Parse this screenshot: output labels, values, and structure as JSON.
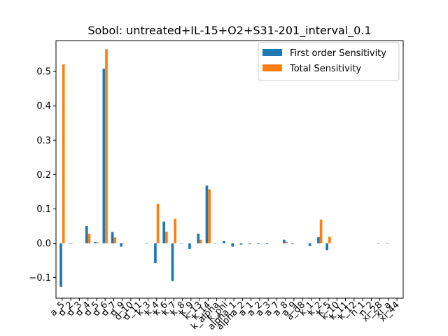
{
  "chart_data": {
    "type": "bar",
    "title": "Sobol: untreated+IL-15+O2+S31-201_interval_0.1",
    "xlabel": "",
    "ylabel": "",
    "ylim": [
      -0.16,
      0.59
    ],
    "yticks": [
      -0.1,
      0.0,
      0.1,
      0.2,
      0.3,
      0.4,
      0.5
    ],
    "ytick_labels": [
      "−0.1",
      "0.0",
      "0.1",
      "0.2",
      "0.3",
      "0.4",
      "0.5"
    ],
    "legend_position": "top-right",
    "grid": false,
    "categories": [
      "a_5",
      "d_2",
      "d_3",
      "d_4",
      "d_5",
      "d_6",
      "d_7",
      "d_9",
      "d_10",
      "d_11",
      "k_3",
      "k_4",
      "k_6",
      "k_7",
      "k_8",
      "k_9",
      "k_13",
      "k_14",
      "k_alpha",
      "k_phi",
      "alpha_1",
      "alpha_2",
      "a_1",
      "a_2",
      "a_3",
      "a_7",
      "a_8",
      "a_9",
      "a_d8",
      "k_1",
      "k_2",
      "k_5",
      "k_10",
      "k_11",
      "k_12",
      "n_1",
      "n_2",
      "xi_28",
      "xi_a",
      "xi_44"
    ],
    "xtick_labels": [
      "a_5",
      "d_2",
      "d_3",
      "d_4",
      "d_5",
      "d_6",
      "d_7",
      "d_9",
      "d_10",
      "d_11",
      "k_3",
      "k_4",
      "k_6",
      "k_7",
      "k_8",
      "k_9",
      "k_13",
      "k_14",
      "k_alpha",
      "k_phi",
      "alpha_1",
      "alpha_2",
      "a_1",
      "a_2",
      "a_3",
      "a_7",
      "a_8",
      "a_9",
      "a_d8",
      "k_1",
      "k_2",
      "k_5",
      "k_10",
      "k_11",
      "k_12",
      "n_1",
      "n_2",
      "xi_28",
      "xi_a",
      "xi_44"
    ],
    "series": [
      {
        "name": "First order Sensitivity",
        "color": "#1f77b4",
        "values": [
          -0.127,
          0.001,
          0.0,
          0.05,
          0.003,
          0.508,
          0.033,
          -0.01,
          0.0,
          0.0,
          0.001,
          -0.058,
          0.063,
          -0.11,
          0.001,
          -0.017,
          0.028,
          0.168,
          0.001,
          0.007,
          -0.01,
          -0.004,
          -0.002,
          -0.002,
          -0.002,
          0.0,
          0.01,
          -0.002,
          0.0,
          -0.008,
          0.018,
          -0.02,
          0.0,
          0.0,
          0.0,
          0.0,
          0.0,
          0.001,
          0.001,
          0.0
        ]
      },
      {
        "name": "Total Sensitivity",
        "color": "#ff7f0e",
        "values": [
          0.521,
          0.001,
          0.0,
          0.028,
          0.002,
          0.565,
          0.017,
          0.001,
          0.0,
          0.0,
          0.0,
          0.115,
          0.034,
          0.071,
          0.0,
          0.0,
          0.01,
          0.157,
          0.0,
          0.0,
          0.0,
          0.0,
          0.0,
          0.0,
          0.0,
          0.0,
          0.004,
          0.0,
          0.0,
          0.0,
          0.069,
          0.019,
          0.0,
          0.0,
          0.0,
          0.0,
          0.0,
          0.0,
          0.0,
          0.0
        ]
      }
    ]
  }
}
